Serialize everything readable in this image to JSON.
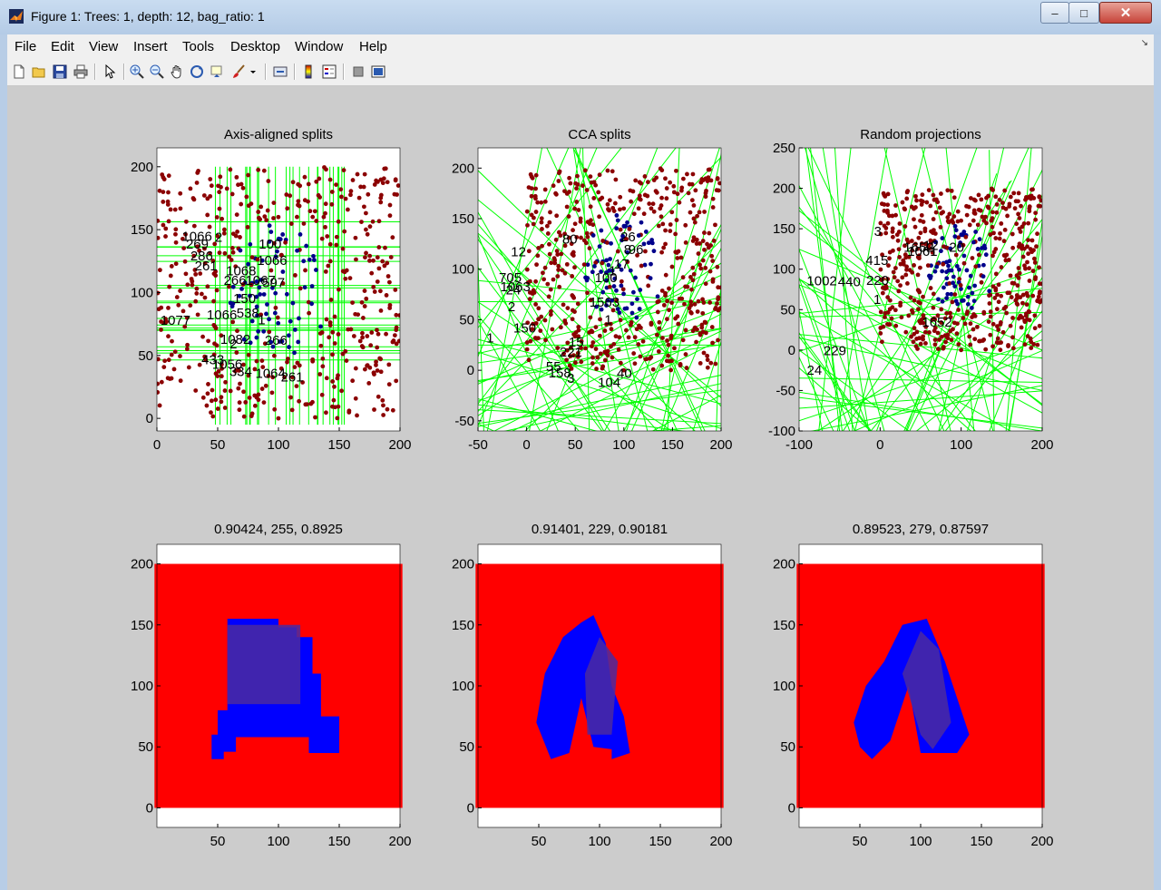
{
  "window": {
    "title": "Figure 1: Trees: 1, depth: 12, bag_ratio: 1",
    "minimize": "–",
    "maximize": "□",
    "close": "✕"
  },
  "menu": [
    "File",
    "Edit",
    "View",
    "Insert",
    "Tools",
    "Desktop",
    "Window",
    "Help"
  ],
  "toolbar_icons": [
    "new-figure-icon",
    "open-file-icon",
    "save-icon",
    "print-icon",
    "pointer-icon",
    "zoom-in-icon",
    "zoom-out-icon",
    "pan-icon",
    "rotate-3d-icon",
    "data-cursor-icon",
    "brush-icon",
    "brush-dropdown-icon",
    "link-plot-icon",
    "colorbar-icon",
    "legend-icon",
    "hide-plot-tools-icon",
    "show-plot-tools-icon"
  ],
  "colors": {
    "class_a": "#8b0000",
    "class_b": "#00008b",
    "split_line": "#00ff00",
    "region_a": "#ff0000",
    "region_b": "#0000ff",
    "region_b_mixed": "#4b2aa0"
  },
  "top_axes": [
    {
      "title": "Axis-aligned splits",
      "xticks": [
        "0",
        "50",
        "100",
        "150",
        "200"
      ],
      "yticks": [
        "0",
        "50",
        "100",
        "150",
        "200"
      ],
      "xlim": [
        0,
        200
      ],
      "ylim": [
        -10,
        215
      ],
      "node_labels": [
        "2",
        "266",
        "266",
        "150",
        "1077",
        "269",
        "100",
        "597",
        "1082",
        "1066",
        "1066",
        "538",
        "261",
        "286",
        "261",
        "1068",
        "1066",
        "1067",
        "1056",
        "1064",
        "433",
        "334",
        "1",
        "2"
      ]
    },
    {
      "title": "CCA splits",
      "xticks": [
        "-50",
        "0",
        "50",
        "100",
        "150",
        "200"
      ],
      "yticks": [
        "-50",
        "0",
        "50",
        "100",
        "150",
        "200"
      ],
      "xlim": [
        -50,
        200
      ],
      "ylim": [
        -60,
        220
      ],
      "node_labels": [
        "221",
        "100",
        "96",
        "55",
        "1063",
        "104",
        "705",
        "2",
        "40",
        "24",
        "26",
        "1563",
        "12",
        "3",
        "17",
        "1",
        "15",
        "80",
        "150",
        "1",
        "8",
        "158",
        "1"
      ]
    },
    {
      "title": "Random projections",
      "xticks": [
        "-100",
        "0",
        "100",
        "200"
      ],
      "yticks": [
        "-100",
        "-50",
        "0",
        "50",
        "100",
        "150",
        "200",
        "250"
      ],
      "xlim": [
        -100,
        200
      ],
      "ylim": [
        -100,
        250
      ],
      "node_labels": [
        "3",
        "415",
        "440",
        "12",
        "1652",
        "229",
        "1061",
        "220",
        "1",
        "1652",
        "1002",
        "24",
        "20"
      ]
    }
  ],
  "bottom_axes": [
    {
      "title": "0.90424, 255, 0.8925",
      "xticks": [
        "50",
        "100",
        "150",
        "200"
      ],
      "yticks": [
        "0",
        "50",
        "100",
        "150",
        "200"
      ]
    },
    {
      "title": "0.91401, 229, 0.90181",
      "xticks": [
        "50",
        "100",
        "150",
        "200"
      ],
      "yticks": [
        "0",
        "50",
        "100",
        "150",
        "200"
      ]
    },
    {
      "title": "0.89523, 279, 0.87597",
      "xticks": [
        "50",
        "100",
        "150",
        "200"
      ],
      "yticks": [
        "0",
        "50",
        "100",
        "150",
        "200"
      ]
    }
  ]
}
